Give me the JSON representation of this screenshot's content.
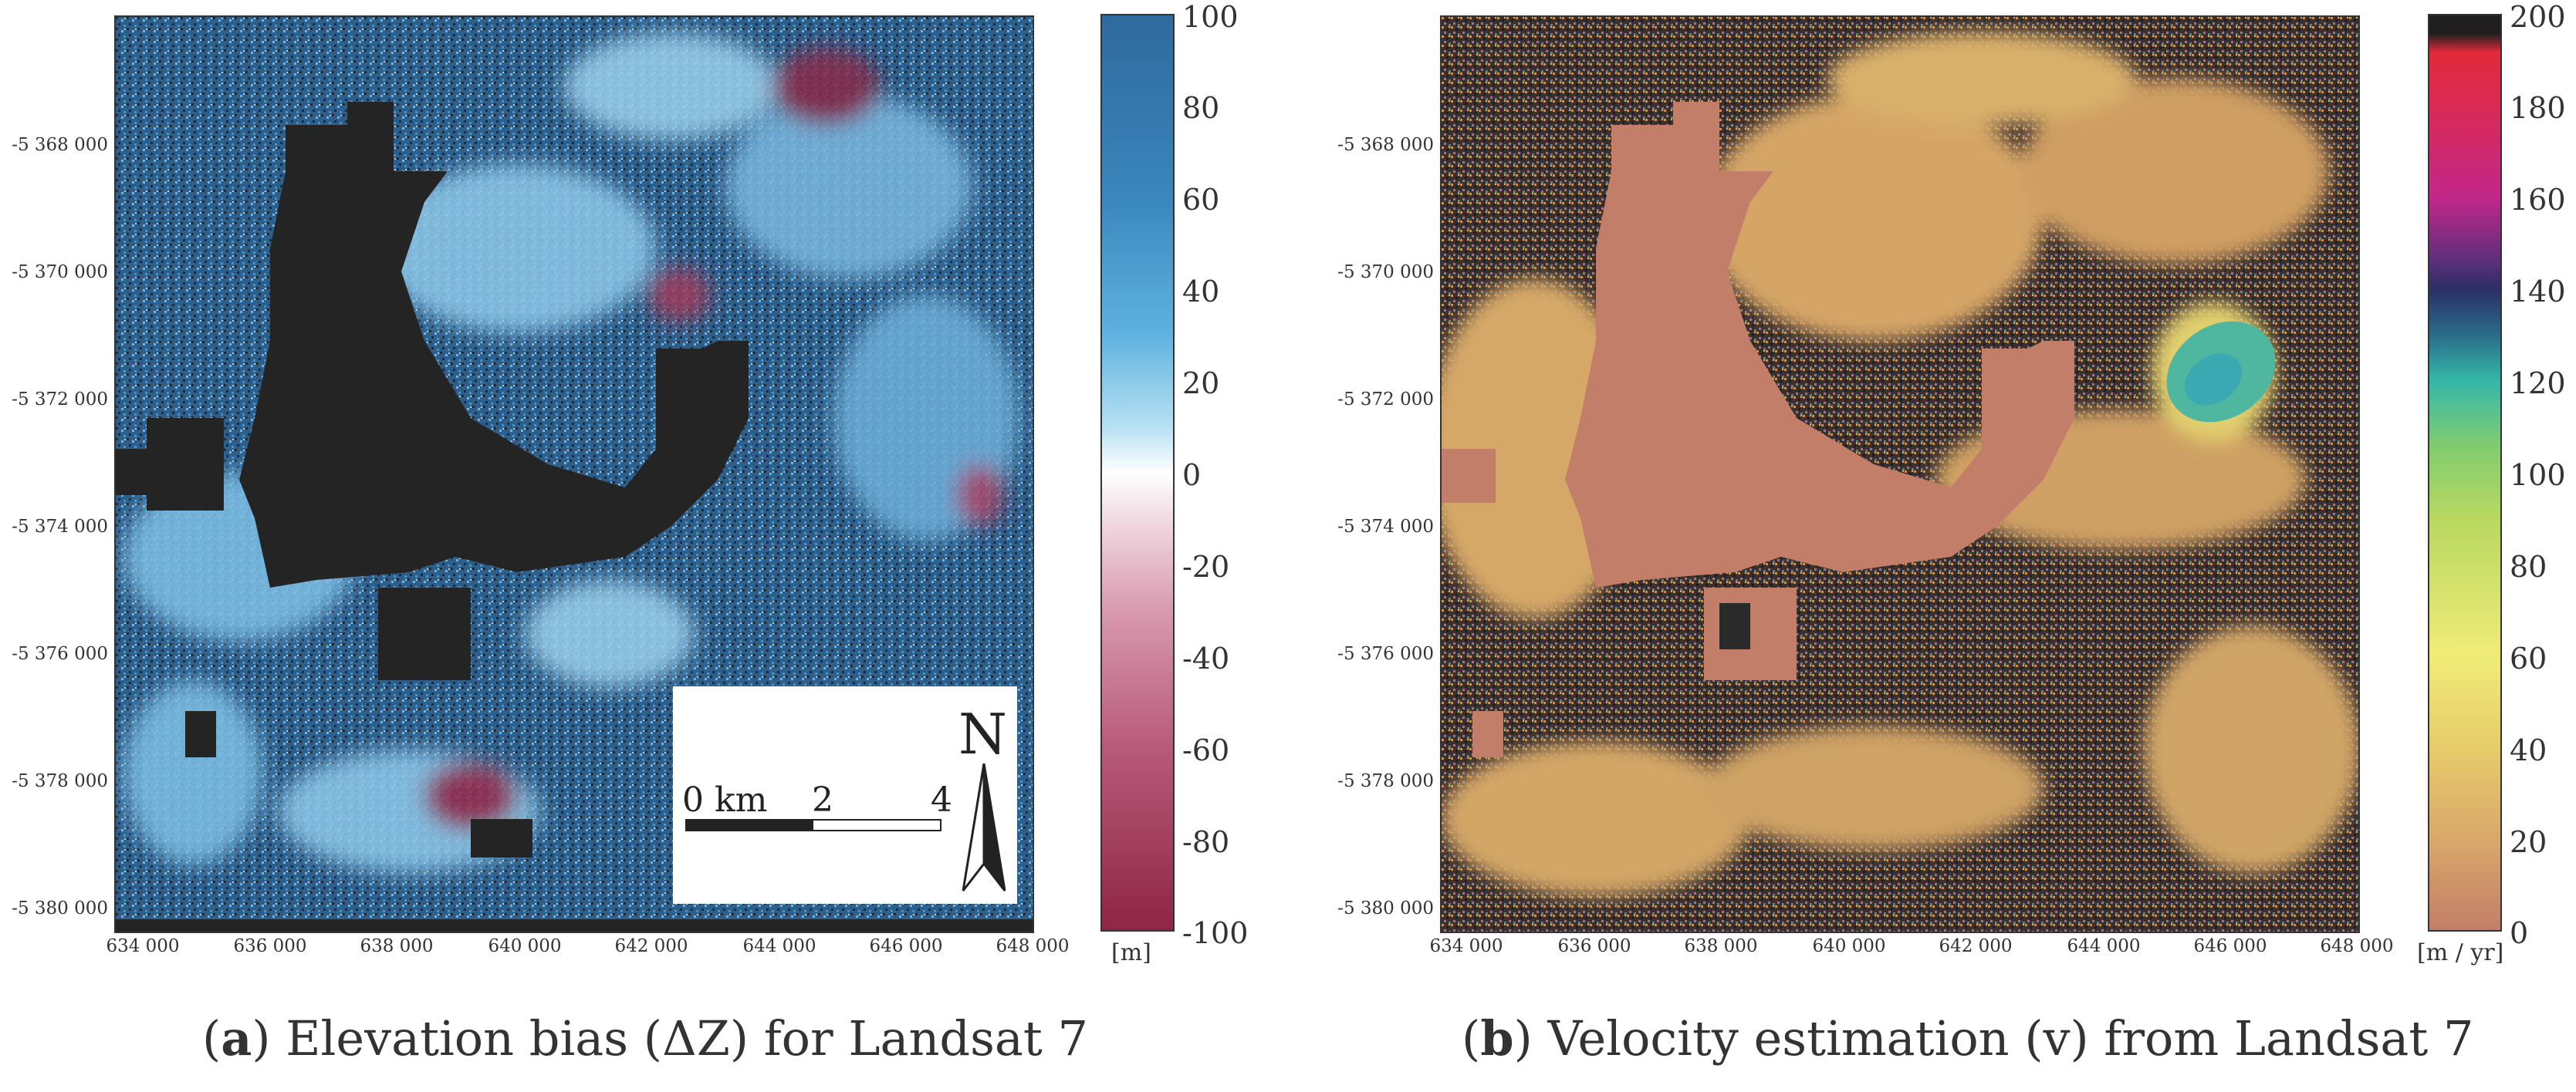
{
  "panel_a": {
    "colorbar_ticks": [
      "100",
      "80",
      "60",
      "40",
      "20",
      "0",
      "-20",
      "-40",
      "-60",
      "-80",
      "-100"
    ],
    "unit": "[m]",
    "caption_letter": "a",
    "caption_text": "Elevation bias (ΔZ) for Landsat 7",
    "scale_zero": "0 km",
    "scale_two": "2",
    "scale_four": "4",
    "north": "N"
  },
  "panel_b": {
    "colorbar_ticks": [
      "200",
      "180",
      "160",
      "140",
      "120",
      "100",
      "80",
      "60",
      "40",
      "20",
      "0"
    ],
    "unit": "[m / yr]",
    "caption_letter": "b",
    "caption_text": "Velocity estimation (v) from Landsat 7"
  },
  "axes": {
    "y_ticks": [
      "-5 368 000",
      "-5 370 000",
      "-5 372 000",
      "-5 374 000",
      "-5 376 000",
      "-5 378 000",
      "-5 380 000"
    ],
    "x_ticks": [
      "634 000",
      "636 000",
      "638 000",
      "640 000",
      "642 000",
      "644 000",
      "646 000",
      "648 000"
    ]
  },
  "colors": {
    "bias_high": "#2f6a9c",
    "bias_mid_high": "#4aa6d8",
    "bias_zero": "#ffffff",
    "bias_low": "#8e2545",
    "nodata": "#222222",
    "vel_low": "#c27e68",
    "vel_20": "#d9a86a",
    "vel_40": "#e6cc6a",
    "vel_60": "#f0ec78",
    "vel_100": "#a0cf5a",
    "vel_120": "#35b8a8",
    "vel_140": "#2b2f66",
    "vel_160": "#c2288a",
    "vel_180": "#e02a3a",
    "vel_200": "#1e1e1e"
  }
}
